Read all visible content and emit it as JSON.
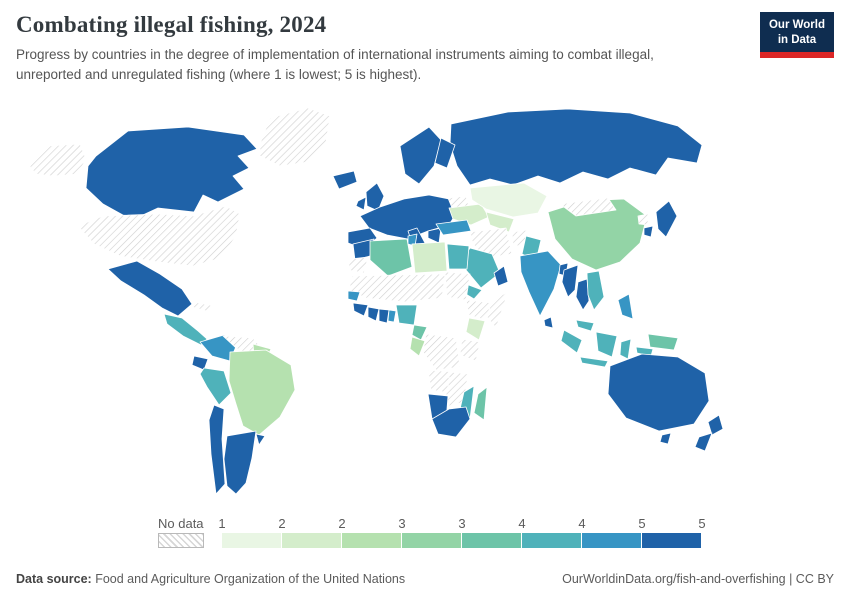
{
  "header": {
    "title": "Combating illegal fishing, 2024",
    "subtitle": "Progress by countries in the degree of implementation of international instruments aiming to combat illegal, unreported and unregulated fishing (where 1 is lowest; 5 is highest).",
    "logo": {
      "line1": "Our World",
      "line2": "in Data"
    }
  },
  "legend": {
    "no_data_label": "No data"
  },
  "footer": {
    "source_label": "Data source:",
    "source_value": " Food and Agriculture Organization of the United Nations",
    "credit": "OurWorldinData.org/fish-and-overfishing | CC BY"
  },
  "colors": {
    "logo_navy": "#0f2d50",
    "logo_red": "#dc2626",
    "text_gray": "#5b5b5b",
    "map_border": "#ffffff"
  },
  "chart_data": {
    "type": "heatmap",
    "subtype": "choropleth_world_map",
    "title": "Combating illegal fishing, 2024",
    "unit": "degree of implementation (1 is lowest; 5 is highest)",
    "value_range": [
      1,
      5
    ],
    "legend_labels": [
      "1",
      "2",
      "2",
      "3",
      "3",
      "4",
      "4",
      "5",
      "5"
    ],
    "bin_edges": [
      1,
      1.5,
      2,
      2.5,
      3,
      3.5,
      4,
      4.5,
      5
    ],
    "bin_colors": [
      "#e9f6e4",
      "#d4edcb",
      "#b5e1af",
      "#93d4a6",
      "#6dc4a8",
      "#4fb2ba",
      "#3795c4",
      "#1f62a8"
    ],
    "no_data_style": "diagonal-hatch",
    "countries": {
      "canada": 5,
      "mexico": 5,
      "central_america": 3.5,
      "colombia": 4,
      "ecuador": 5,
      "peru": 3.5,
      "guyana": 2,
      "brazil": 2,
      "chile": 5,
      "argentina": 5,
      "uruguay": 5,
      "iceland": 5,
      "uk": 5,
      "ireland": 5,
      "norway_sweden": 5,
      "finland": 5,
      "europe_main": 5,
      "iberia": 5,
      "italy": 5,
      "balkans_greece": 5,
      "ukraine": 1.5,
      "russia": 5,
      "kazakhstan": 1,
      "central_asia": 1.5,
      "turkey": 4,
      "saudi_arabia": 3.5,
      "yemen": 3.5,
      "oman": 5,
      "pakistan": 3.5,
      "india": 4,
      "sri_lanka": 5,
      "bangladesh": 5,
      "china": 2.5,
      "myanmar": 5,
      "thailand": 5,
      "vietnam": 3.5,
      "malaysia": 3.5,
      "indonesia": 3.5,
      "philippines": 4,
      "new_guinea": 3,
      "japan": 5,
      "south_korea": 5,
      "morocco": 5,
      "algeria": 3,
      "tunisia": 4,
      "libya": 1.5,
      "egypt": 3.5,
      "senegal": 4,
      "guinea": 5,
      "ivory_coast": 5,
      "ghana": 5,
      "togo_benin": 4,
      "nigeria": 3.5,
      "cameroon": 3,
      "gabon_congo": 2,
      "kenya": 1.5,
      "namibia": 5,
      "south_africa": 5,
      "mozambique": 3.5,
      "madagascar": 3,
      "australia": 5,
      "tasmania": 5,
      "new_zealand": 5
    },
    "no_data_countries": [
      "United States",
      "Greenland",
      "Cuba",
      "Venezuela",
      "Belarus",
      "Mongolia",
      "Iran",
      "Afghanistan",
      "North Korea",
      "Western Sahara",
      "Mauritania",
      "Mali",
      "Niger",
      "Chad",
      "Sudan",
      "Ethiopia",
      "Somalia",
      "Democratic Republic of Congo",
      "Tanzania",
      "Angola",
      "Zambia",
      "Zimbabwe",
      "Botswana"
    ]
  }
}
